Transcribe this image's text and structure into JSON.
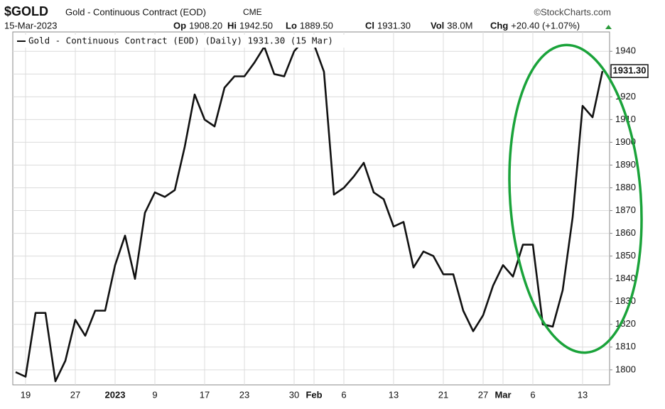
{
  "chart_data": {
    "type": "line",
    "title": "$GOLD",
    "subtitle": "Gold - Continuous Contract (EOD)",
    "exchange": "CME",
    "credit": "©StockCharts.com",
    "date": "15-Mar-2023",
    "stats": [
      {
        "label": "Op",
        "value": "1908.20"
      },
      {
        "label": "Hi",
        "value": "1942.50"
      },
      {
        "label": "Lo",
        "value": "1889.50"
      },
      {
        "label": "Cl",
        "value": "1931.30"
      },
      {
        "label": "Vol",
        "value": "38.0M"
      },
      {
        "label": "Chg",
        "value": "+20.40 (+1.07%)"
      }
    ],
    "categories": [
      null,
      "19",
      null,
      null,
      null,
      null,
      "27",
      null,
      null,
      null,
      "2023",
      null,
      null,
      null,
      "9",
      null,
      null,
      null,
      null,
      "17",
      null,
      null,
      null,
      "23",
      null,
      null,
      null,
      null,
      "30",
      null,
      "Feb",
      null,
      null,
      "6",
      null,
      null,
      null,
      null,
      "13",
      null,
      null,
      null,
      null,
      "21",
      null,
      null,
      null,
      "27",
      null,
      "Mar",
      null,
      null,
      "6",
      null,
      null,
      null,
      null,
      "13",
      null,
      null
    ],
    "series": [
      {
        "name": "Gold - Continuous Contract (EOD) (Daily) 1931.30 (15 Mar)",
        "color": "#111111",
        "values": [
          1799,
          1797,
          1825,
          1825,
          1795,
          1804,
          1822,
          1815,
          1826,
          1826,
          1846,
          1859,
          1840,
          1869,
          1878,
          1876,
          1879,
          1898,
          1921,
          1910,
          1907,
          1924,
          1929,
          1929,
          1935,
          1942,
          1930,
          1929,
          1940,
          1945,
          1943,
          1931,
          1877,
          1880,
          1885,
          1891,
          1878,
          1875,
          1863,
          1865,
          1845,
          1852,
          1850,
          1842,
          1842,
          1826,
          1817,
          1824,
          1837,
          1846,
          1841,
          1855,
          1855,
          1820,
          1819,
          1835,
          1867,
          1916,
          1911,
          1931.3
        ],
        "last_value_label": "1931.30"
      }
    ],
    "ylim": [
      1793.4,
      1948.5
    ],
    "yticks": [
      1800,
      1810,
      1820,
      1830,
      1840,
      1850,
      1860,
      1870,
      1880,
      1890,
      1900,
      1910,
      1920,
      1930,
      1940
    ],
    "grid": true,
    "legend": "top-left"
  }
}
